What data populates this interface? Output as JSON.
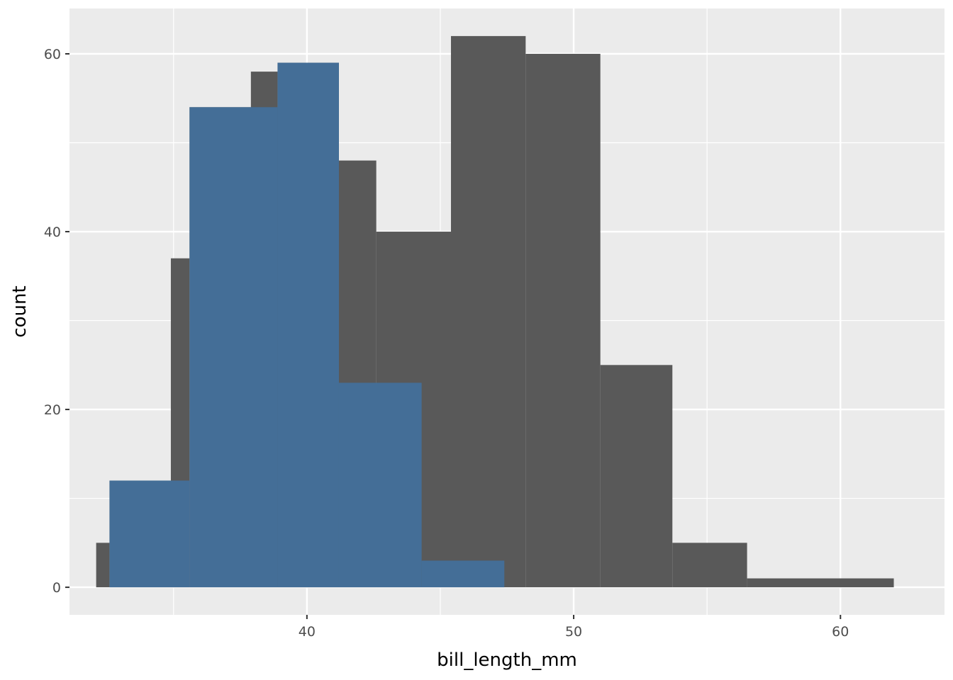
{
  "chart_data": {
    "type": "bar",
    "xlabel": "bill_length_mm",
    "ylabel": "count",
    "xlim": [
      31.1,
      63.9
    ],
    "ylim": [
      -3.1,
      65.1
    ],
    "x_ticks": [
      40,
      50,
      60
    ],
    "y_ticks": [
      0,
      20,
      40,
      60
    ],
    "x_minor_ticks": [
      35,
      45,
      55
    ],
    "y_minor_ticks": [
      10,
      30,
      50
    ],
    "grid": true,
    "legend": "none",
    "background": "#EBEBEB",
    "grid_color": "#FFFFFF",
    "series": [
      {
        "color": "#595959",
        "bins": [
          {
            "x0": 32.1,
            "x1": 32.6,
            "count": 5
          },
          {
            "x0": 32.6,
            "x1": 34.9,
            "count": 12
          },
          {
            "x0": 34.9,
            "x1": 35.6,
            "count": 37
          },
          {
            "x0": 35.6,
            "x1": 37.9,
            "count": 54
          },
          {
            "x0": 37.9,
            "x1": 38.9,
            "count": 58
          },
          {
            "x0": 38.9,
            "x1": 41.2,
            "count": 59
          },
          {
            "x0": 41.2,
            "x1": 42.6,
            "count": 48
          },
          {
            "x0": 42.6,
            "x1": 45.4,
            "count": 40
          },
          {
            "x0": 45.4,
            "x1": 48.2,
            "count": 62
          },
          {
            "x0": 48.2,
            "x1": 51.0,
            "count": 60
          },
          {
            "x0": 51.0,
            "x1": 53.7,
            "count": 25
          },
          {
            "x0": 53.7,
            "x1": 56.5,
            "count": 5
          },
          {
            "x0": 56.5,
            "x1": 62.0,
            "count": 1
          }
        ]
      },
      {
        "color": "#446E97",
        "bins": [
          {
            "x0": 32.6,
            "x1": 35.6,
            "count": 12
          },
          {
            "x0": 35.6,
            "x1": 38.9,
            "count": 54
          },
          {
            "x0": 38.9,
            "x1": 41.2,
            "count": 59
          },
          {
            "x0": 41.2,
            "x1": 44.3,
            "count": 23
          },
          {
            "x0": 44.3,
            "x1": 47.4,
            "count": 3
          }
        ]
      }
    ]
  }
}
